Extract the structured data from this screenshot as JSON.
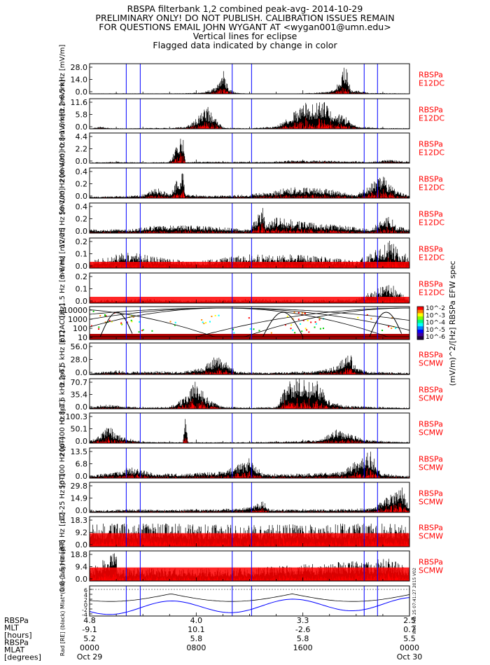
{
  "header": {
    "title": "RBSPA filterbank 1,2 combined peak-avg- 2014-10-29",
    "line2": "PRELIMINARY ONLY! DO NOT PUBLISH. CALIBRATION ISSUES REMAIN",
    "line3": "FOR QUESTIONS EMAIL JOHN WYGANT AT <wygan001@umn.edu>",
    "line4": "Vertical lines for eclipse",
    "line5": "Flagged data indicated by change in color"
  },
  "colors": {
    "trace": "#000000",
    "flag": "#ff0000",
    "eclipse_line": "#0000ff",
    "mlat_line": "#0000ff",
    "label_red": "#ff0000"
  },
  "chart_data": {
    "type": "line",
    "x_axis": {
      "tick_labels": [
        "0000",
        "0800",
        "1600",
        "0000"
      ],
      "date_labels": [
        "Oct 29",
        "",
        "",
        "Oct 30"
      ],
      "range_hours": [
        0,
        24
      ]
    },
    "eclipse_lines_hours": [
      2.75,
      3.8,
      10.7,
      12.15,
      20.6,
      21.6
    ],
    "panels": [
      {
        "ylabel": "3.2-6.5 kHz [mV/m]",
        "yticks": [
          "28.0",
          "14.0",
          "0.0"
        ],
        "ymax": 28.0,
        "side": [
          "RBSPa",
          "E12DC"
        ],
        "profile": [
          [
            0,
            0.3
          ],
          [
            2,
            0.5
          ],
          [
            4,
            0.4
          ],
          [
            5,
            0.4
          ],
          [
            7,
            0.5
          ],
          [
            8.5,
            1.5
          ],
          [
            9.5,
            6
          ],
          [
            10,
            28
          ],
          [
            10.4,
            5
          ],
          [
            11,
            1
          ],
          [
            12,
            0.3
          ],
          [
            14,
            0.3
          ],
          [
            16,
            0.5
          ],
          [
            18,
            2
          ],
          [
            18.5,
            6
          ],
          [
            19.2,
            28
          ],
          [
            19.6,
            4
          ],
          [
            21,
            1
          ],
          [
            24,
            0.3
          ]
        ]
      },
      {
        "ylabel": "0.8-1.6 kHz [mV/m]",
        "yticks": [
          "11.6",
          "5.8",
          "0.0"
        ],
        "ymax": 11.6,
        "side": [
          "RBSPa",
          "E12DC"
        ],
        "profile": [
          [
            0,
            0.2
          ],
          [
            1,
            1
          ],
          [
            1.5,
            0.3
          ],
          [
            3,
            0.2
          ],
          [
            5,
            0.4
          ],
          [
            6,
            0.3
          ],
          [
            7.3,
            1
          ],
          [
            8,
            4
          ],
          [
            8.8,
            9
          ],
          [
            9.6,
            3
          ],
          [
            10,
            0.5
          ],
          [
            12,
            0.2
          ],
          [
            14,
            1
          ],
          [
            15,
            5
          ],
          [
            16.2,
            10
          ],
          [
            17.5,
            11
          ],
          [
            18.5,
            6
          ],
          [
            19.5,
            4
          ],
          [
            20,
            1
          ],
          [
            22,
            0.3
          ],
          [
            24,
            0.3
          ]
        ]
      },
      {
        "ylabel": "200-400 Hz [mV/m]",
        "yticks": [
          "4.4",
          "2.2",
          "0.0"
        ],
        "ymax": 4.4,
        "side": [
          "RBSPa",
          "E12DC"
        ],
        "profile": [
          [
            0,
            0.1
          ],
          [
            2,
            0.2
          ],
          [
            4,
            0.1
          ],
          [
            6,
            0.2
          ],
          [
            7,
            4.4
          ],
          [
            7.2,
            0.2
          ],
          [
            10,
            0.2
          ],
          [
            14,
            0.2
          ],
          [
            15,
            0.4
          ],
          [
            17,
            0.4
          ],
          [
            19,
            0.3
          ],
          [
            21,
            0.2
          ],
          [
            22.5,
            0.5
          ],
          [
            24,
            0.2
          ]
        ]
      },
      {
        "ylabel": "50-100 Hz [mV/m]",
        "yticks": [
          "0.4",
          "0.2",
          "0.0"
        ],
        "ymax": 0.4,
        "side": [
          "RBSPa",
          "E12DC"
        ],
        "profile": [
          [
            0,
            0.02
          ],
          [
            3,
            0.03
          ],
          [
            4,
            0.05
          ],
          [
            5,
            0.15
          ],
          [
            6,
            0.05
          ],
          [
            7,
            0.4
          ],
          [
            7.2,
            0.05
          ],
          [
            9,
            0.03
          ],
          [
            12,
            0.05
          ],
          [
            14,
            0.1
          ],
          [
            15,
            0.15
          ],
          [
            18,
            0.12
          ],
          [
            20,
            0.05
          ],
          [
            22,
            0.3
          ],
          [
            23,
            0.1
          ],
          [
            24,
            0.05
          ]
        ]
      },
      {
        "ylabel": "12-25 Hz [mV/m]",
        "yticks": [
          "0.4",
          "0.2",
          "0.0"
        ],
        "ymax": 0.4,
        "side": [
          "RBSPa",
          "E12DC"
        ],
        "profile": [
          [
            0,
            0.05
          ],
          [
            3,
            0.05
          ],
          [
            5,
            0.1
          ],
          [
            8,
            0.1
          ],
          [
            12,
            0.05
          ],
          [
            13,
            0.35
          ],
          [
            13.2,
            0.1
          ],
          [
            14,
            0.22
          ],
          [
            16,
            0.15
          ],
          [
            19,
            0.1
          ],
          [
            21,
            0.05
          ],
          [
            22.5,
            0.25
          ],
          [
            23,
            0.1
          ],
          [
            24,
            0.05
          ]
        ]
      },
      {
        "ylabel": "3-6 Hz [mV/m]",
        "yticks": [
          "0.2",
          "0.1",
          "0.0"
        ],
        "ymax": 0.22,
        "side": [
          "RBSPa",
          "E12DC"
        ],
        "profile": [
          [
            0,
            0.05
          ],
          [
            2,
            0.1
          ],
          [
            3,
            0.12
          ],
          [
            5,
            0.08
          ],
          [
            8,
            0.05
          ],
          [
            12,
            0.1
          ],
          [
            15,
            0.1
          ],
          [
            18,
            0.08
          ],
          [
            20,
            0.05
          ],
          [
            22.5,
            0.2
          ],
          [
            24,
            0.08
          ]
        ]
      },
      {
        "ylabel": "0.8-1.5 Hz [mV/m]",
        "yticks": [
          "0.2",
          "0.1",
          "0.0"
        ],
        "ymax": 0.22,
        "side": [
          "RBSPa",
          "E12DC"
        ],
        "profile": [
          [
            0,
            0.02
          ],
          [
            4,
            0.03
          ],
          [
            8,
            0.02
          ],
          [
            12,
            0.03
          ],
          [
            16,
            0.02
          ],
          [
            20,
            0.03
          ],
          [
            22.5,
            0.15
          ],
          [
            24,
            0.03
          ]
        ]
      },
      {
        "ylabel": "E12AC [Hz]",
        "yticks": [
          "10000",
          "1000",
          "100",
          "10"
        ],
        "ymax": 0,
        "kind": "spectrogram",
        "side": [],
        "profile": []
      },
      {
        "ylabel": "3.2-6.5 kHz [pT]",
        "yticks": [
          "56.0",
          "28.0",
          "0.0"
        ],
        "ymax": 56.0,
        "side": [
          "RBSPa",
          "SCMW"
        ],
        "profile": [
          [
            0,
            2
          ],
          [
            1,
            5
          ],
          [
            2,
            8
          ],
          [
            3,
            5
          ],
          [
            5,
            6
          ],
          [
            7,
            5
          ],
          [
            8.5,
            12
          ],
          [
            9.5,
            35
          ],
          [
            10.5,
            20
          ],
          [
            11,
            6
          ],
          [
            13,
            3
          ],
          [
            15,
            5
          ],
          [
            17,
            6
          ],
          [
            18.5,
            15
          ],
          [
            19.5,
            40
          ],
          [
            20,
            12
          ],
          [
            21,
            5
          ],
          [
            24,
            3
          ]
        ]
      },
      {
        "ylabel": "0.8-1.6 kHz [pT]",
        "yticks": [
          "70.7",
          "35.4",
          "0.0"
        ],
        "ymax": 70.7,
        "side": [
          "RBSPa",
          "SCMW"
        ],
        "profile": [
          [
            0,
            3
          ],
          [
            1,
            10
          ],
          [
            2,
            8
          ],
          [
            4,
            3
          ],
          [
            6,
            5
          ],
          [
            7.3,
            30
          ],
          [
            8,
            70
          ],
          [
            9,
            20
          ],
          [
            10,
            5
          ],
          [
            12,
            3
          ],
          [
            14,
            5
          ],
          [
            15,
            70.7
          ],
          [
            17,
            70
          ],
          [
            18,
            20
          ],
          [
            19,
            8
          ],
          [
            21,
            5
          ],
          [
            24,
            3
          ]
        ]
      },
      {
        "ylabel": "200-400 Hz [pT]",
        "yticks": [
          "100.3",
          "50.1",
          "0.0"
        ],
        "ymax": 100.3,
        "side": [
          "RBSPa",
          "SCMW"
        ],
        "profile": [
          [
            0,
            5
          ],
          [
            0.8,
            30
          ],
          [
            1.5,
            60
          ],
          [
            2,
            30
          ],
          [
            3,
            15
          ],
          [
            4,
            5
          ],
          [
            7,
            3
          ],
          [
            7.2,
            100
          ],
          [
            7.4,
            3
          ],
          [
            11,
            3
          ],
          [
            14,
            5
          ],
          [
            17,
            10
          ],
          [
            18,
            30
          ],
          [
            18.5,
            45
          ],
          [
            19.5,
            30
          ],
          [
            21,
            10
          ],
          [
            24,
            3
          ]
        ]
      },
      {
        "ylabel": "50-100 Hz [pT]",
        "yticks": [
          "13.5",
          "6.8",
          "0.0"
        ],
        "ymax": 13.5,
        "side": [
          "RBSPa",
          "SCMW"
        ],
        "profile": [
          [
            0,
            1
          ],
          [
            2,
            3
          ],
          [
            3,
            5
          ],
          [
            5,
            2
          ],
          [
            7,
            2
          ],
          [
            10,
            3
          ],
          [
            12,
            9
          ],
          [
            13,
            2
          ],
          [
            16,
            2
          ],
          [
            19,
            3
          ],
          [
            20.5,
            10
          ],
          [
            21,
            13
          ],
          [
            22,
            2
          ],
          [
            24,
            1
          ]
        ]
      },
      {
        "ylabel": "12-25 Hz [pT]",
        "yticks": [
          "29.8",
          "14.9",
          "0.0"
        ],
        "ymax": 29.8,
        "side": [
          "RBSPa",
          "SCMW"
        ],
        "profile": [
          [
            0,
            2
          ],
          [
            3,
            3
          ],
          [
            6,
            3
          ],
          [
            9,
            3
          ],
          [
            12,
            5
          ],
          [
            13,
            12
          ],
          [
            13.5,
            3
          ],
          [
            15,
            3
          ],
          [
            18,
            3
          ],
          [
            21,
            4
          ],
          [
            23.5,
            25
          ],
          [
            24,
            3
          ]
        ]
      },
      {
        "ylabel": "3-6 Hz [pT]",
        "yticks": [
          "18.3",
          "9.2",
          "0.0"
        ],
        "ymax": 18.3,
        "side": [
          "RBSPa",
          "SCMW"
        ],
        "profile": [
          [
            0,
            14
          ],
          [
            6,
            14
          ],
          [
            12,
            13
          ],
          [
            18,
            14
          ],
          [
            24,
            14
          ]
        ]
      },
      {
        "ylabel": "0.8-1.5 Hz [pT]",
        "yticks": [
          "18.8",
          "9.4",
          "0.0"
        ],
        "ymax": 18.8,
        "side": [
          "RBSPa",
          "SCMW"
        ],
        "profile": [
          [
            0,
            8
          ],
          [
            2,
            18
          ],
          [
            2.1,
            8
          ],
          [
            12,
            8
          ],
          [
            22.5,
            14
          ],
          [
            24,
            8
          ]
        ]
      },
      {
        "ylabel": "Rad [RE] (black) Mlat*(1/6) [deg] (blue)",
        "yticks": [
          "6",
          "4",
          "2",
          "0",
          "-2",
          "-4"
        ],
        "ymax": 0,
        "kind": "orbit",
        "side": [],
        "profile": []
      }
    ],
    "ephemeris": {
      "row_labels": [
        "RBSPa",
        "MLT",
        "[hours]",
        "RBSPa",
        "MLAT",
        "[degrees]"
      ],
      "columns": [
        [
          "4.8",
          "-9.1",
          "5.2",
          "0000",
          "Oct 29"
        ],
        [
          "4.0",
          "10.1",
          "5.8",
          "0800",
          ""
        ],
        [
          "3.3",
          "-2.6",
          "5.8",
          "1600",
          ""
        ],
        [
          "2.5",
          "0.7",
          "5.5",
          "0000",
          "Oct 30"
        ]
      ]
    },
    "colorbar": {
      "tick_labels": [
        "10^-2",
        "10^-3",
        "10^-4",
        "10^-5",
        "10^-6"
      ],
      "label": "(mV/m)^2/[Hz]  RBSPa EFW spec"
    },
    "side_stamp": "Wed Feb 25 07:41:27 2015 V02"
  }
}
